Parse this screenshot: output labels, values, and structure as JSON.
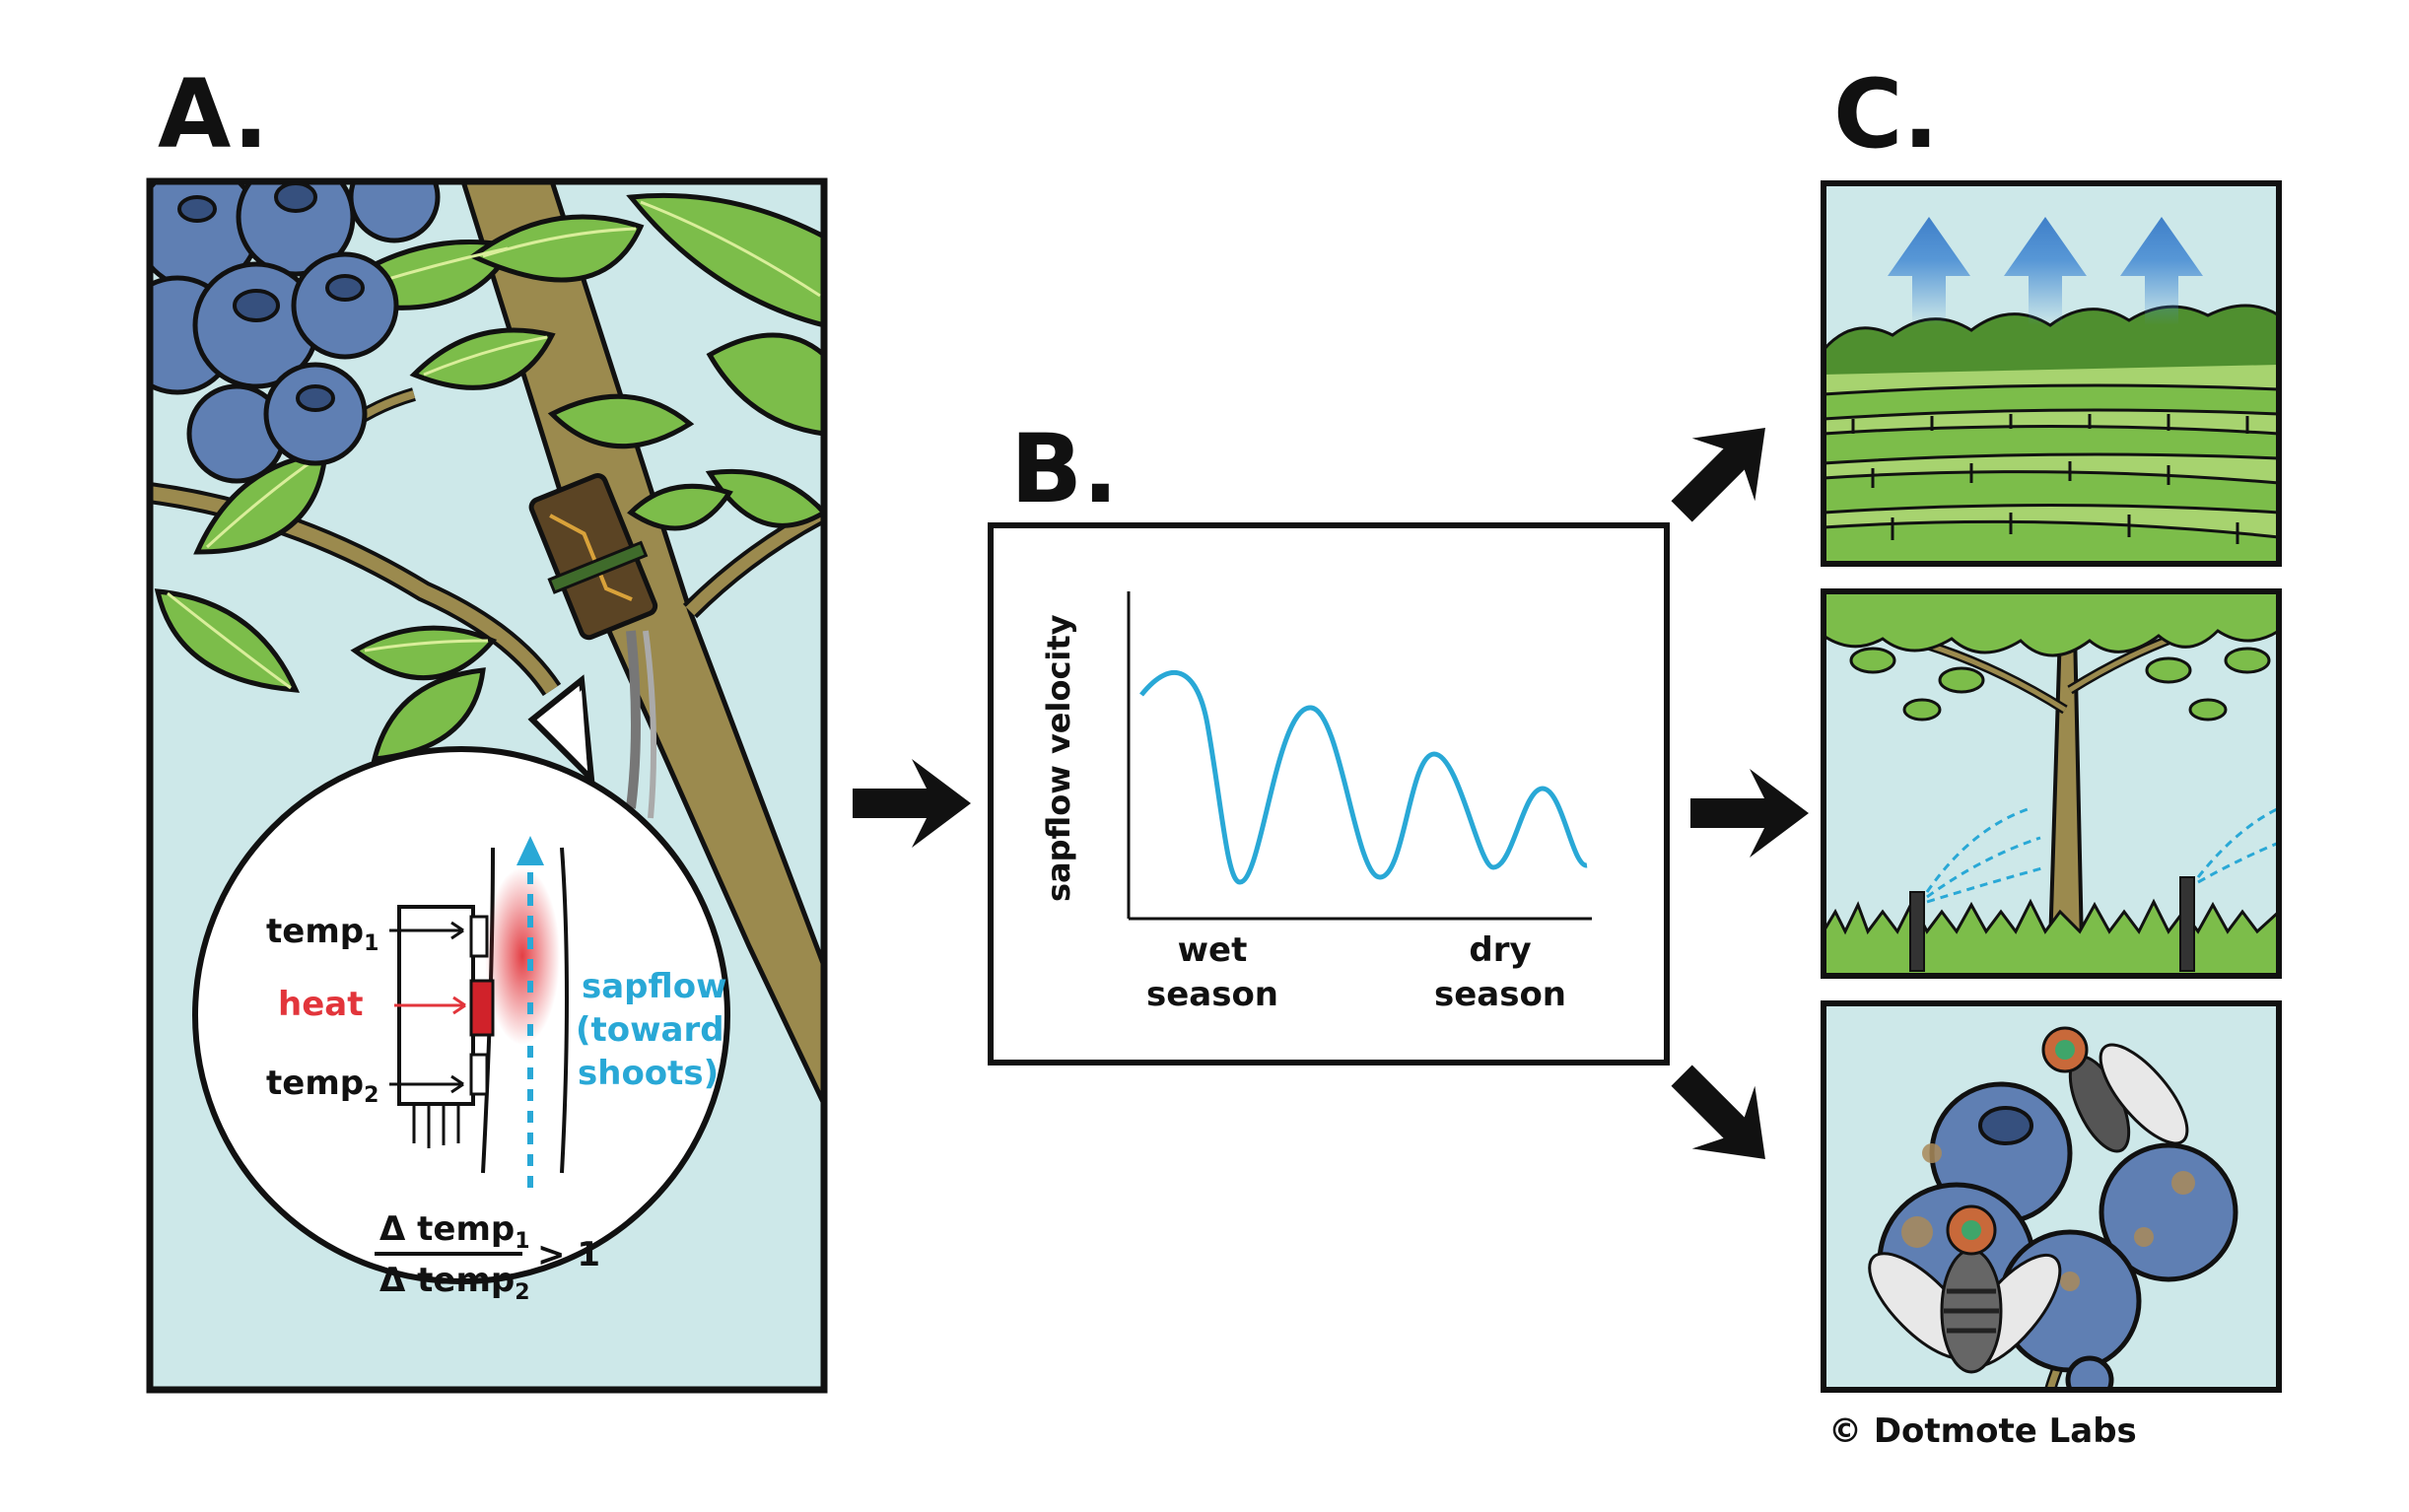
{
  "panels": {
    "a": {
      "letter": "A."
    },
    "b": {
      "letter": "B."
    },
    "c": {
      "letter": "C."
    }
  },
  "sensor": {
    "temp1": "temp",
    "temp1_sub": "1",
    "heat": "heat",
    "temp2": "temp",
    "temp2_sub": "2",
    "sapflow_line1": "sapflow",
    "sapflow_line2": "(toward",
    "sapflow_line3": "shoots)",
    "formula_num": "Δ temp",
    "formula_num_sub": "1",
    "formula_den": "Δ temp",
    "formula_den_sub": "2",
    "formula_rel": "> 1"
  },
  "chart": {
    "ylabel": "sapflow velocity",
    "x_left_line1": "wet",
    "x_left_line2": "season",
    "x_right_line1": "dry",
    "x_right_line2": "season"
  },
  "credit": "© Dotmote Labs",
  "colors": {
    "sky": "#cde8e9",
    "leaf": "#7cbd4a",
    "leaf_dark": "#4f8f2f",
    "berry": "#5f7fb3",
    "sapflow": "#29a8d6",
    "heat": "#e2353b",
    "vapor_arrow": "#4a8ed4"
  }
}
